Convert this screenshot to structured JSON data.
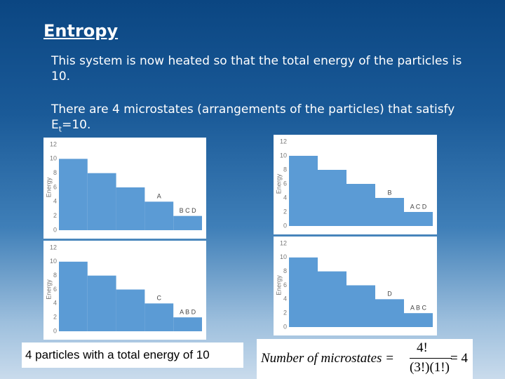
{
  "slide": {
    "title": "Entropy",
    "paragraph1": "This system is now heated so that the total energy of the particles is 10.",
    "paragraph2_start": "There are 4 microstates (arrangements of the particles) that satisfy E",
    "paragraph2_sub": "t",
    "paragraph2_end": "=10.",
    "caption": "4 particles with a total energy of 10",
    "formula": {
      "lhs": "Number of  microstates =",
      "numerator": "4!",
      "denominator": "(3!)(1!)",
      "rhs": "= 4"
    }
  },
  "chart_data": [
    {
      "type": "bar",
      "ylabel": "Energy",
      "values": [
        10,
        8,
        6,
        4,
        2
      ],
      "color": "#5b9bd5",
      "ylim": [
        0,
        12
      ],
      "yticks": [
        0,
        2,
        4,
        6,
        8,
        10,
        12
      ],
      "annotations": [
        {
          "text": "A",
          "level": 4
        },
        {
          "text": "B  C  D",
          "level": 2
        }
      ]
    },
    {
      "type": "bar",
      "ylabel": "Energy",
      "values": [
        10,
        8,
        6,
        4,
        2
      ],
      "color": "#5b9bd5",
      "ylim": [
        0,
        12
      ],
      "yticks": [
        0,
        2,
        4,
        6,
        8,
        10,
        12
      ],
      "annotations": [
        {
          "text": "B",
          "level": 4
        },
        {
          "text": "A  C  D",
          "level": 2
        }
      ]
    },
    {
      "type": "bar",
      "ylabel": "Energy",
      "values": [
        10,
        8,
        6,
        4,
        2
      ],
      "color": "#5b9bd5",
      "ylim": [
        0,
        12
      ],
      "yticks": [
        0,
        2,
        4,
        6,
        8,
        10,
        12
      ],
      "annotations": [
        {
          "text": "C",
          "level": 4
        },
        {
          "text": "A  B  D",
          "level": 2
        }
      ]
    },
    {
      "type": "bar",
      "ylabel": "Energy",
      "values": [
        10,
        8,
        6,
        4,
        2
      ],
      "color": "#5b9bd5",
      "ylim": [
        0,
        12
      ],
      "yticks": [
        0,
        2,
        4,
        6,
        8,
        10,
        12
      ],
      "annotations": [
        {
          "text": "D",
          "level": 4
        },
        {
          "text": "A  B  C",
          "level": 2
        }
      ]
    }
  ]
}
